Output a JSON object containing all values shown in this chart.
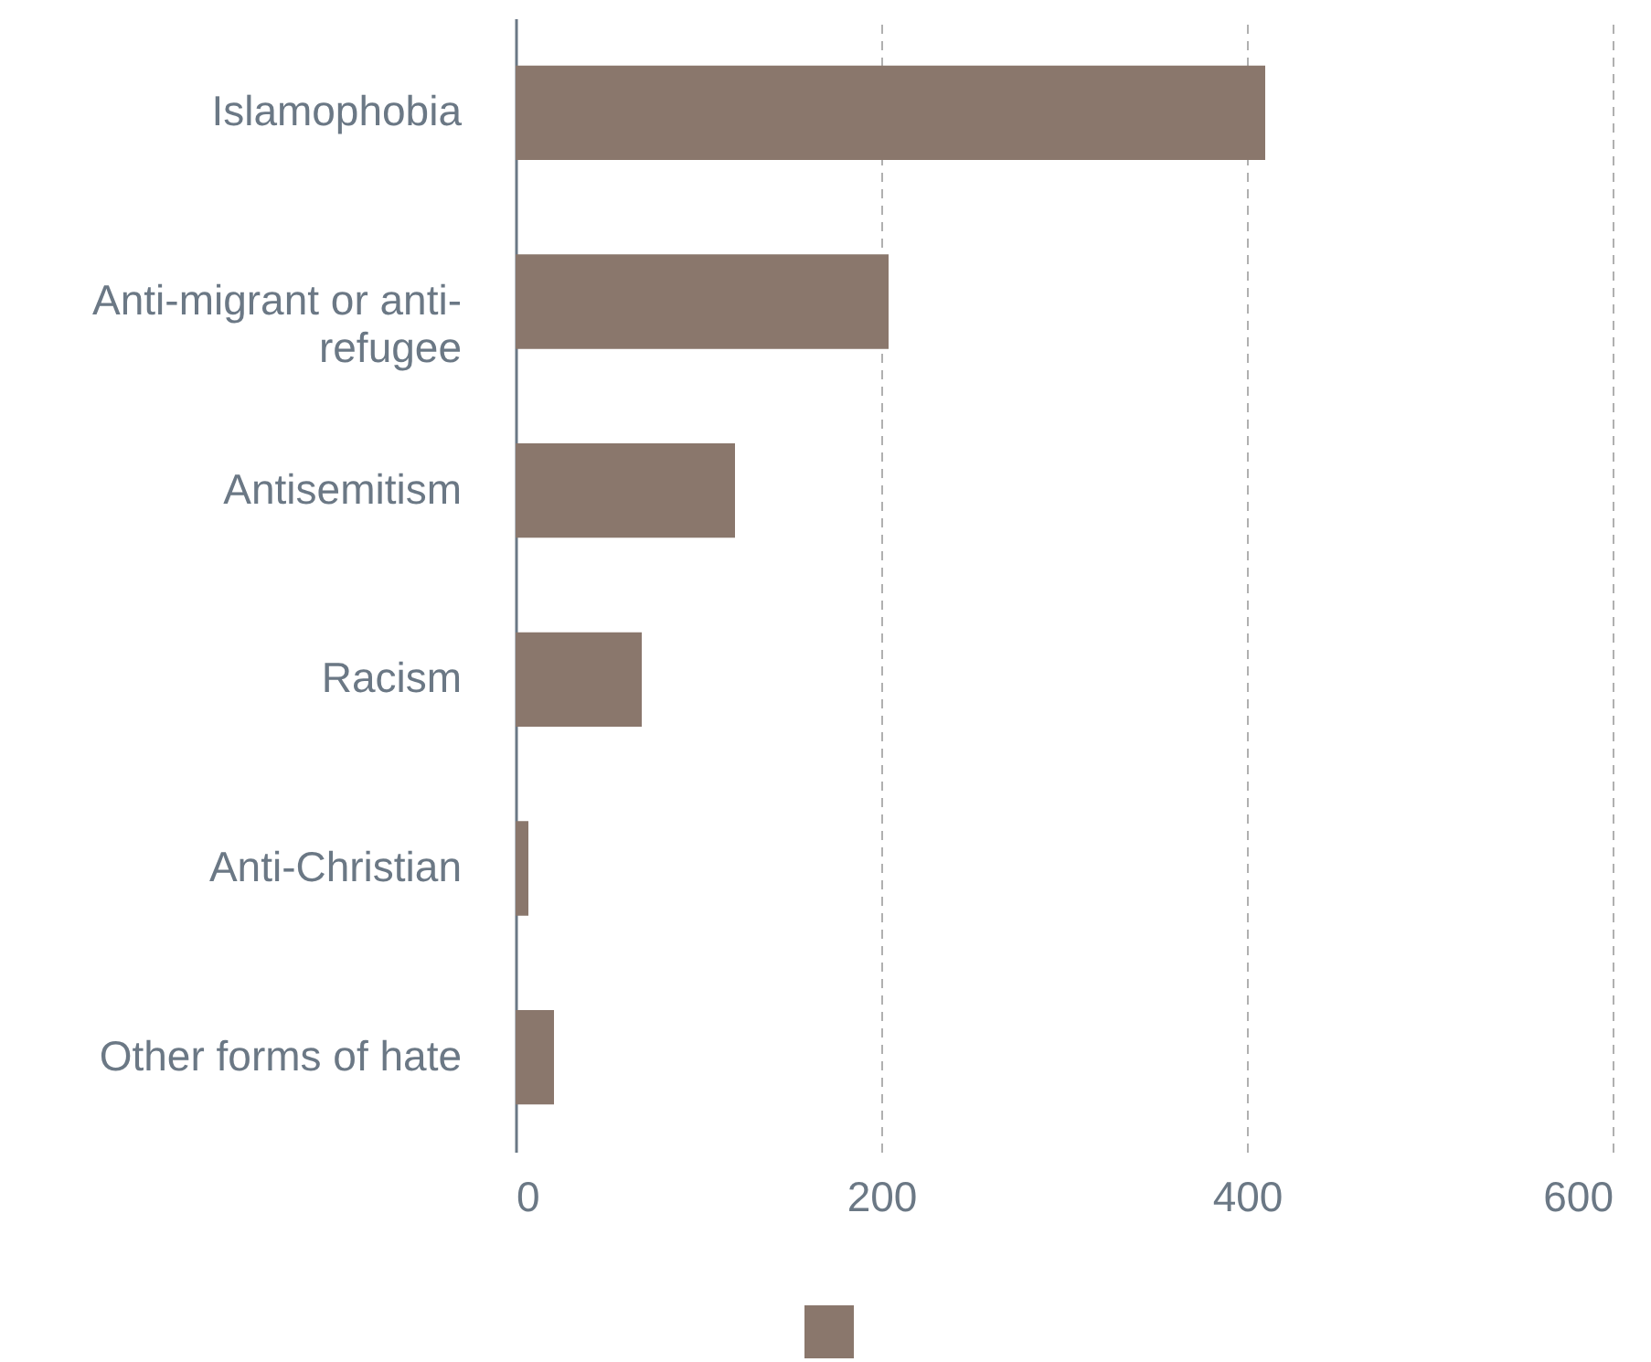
{
  "chart_data": {
    "type": "bar",
    "orientation": "horizontal",
    "categories": [
      "Islamophobia",
      "Anti-migrant or anti-refugee",
      "Antisemitism",
      "Racism",
      "Anti-Christian",
      "Other forms of hate"
    ],
    "series": [
      {
        "color": "#8a776c",
        "values": [
          410,
          204,
          120,
          69,
          7,
          21
        ]
      }
    ],
    "xlim": [
      0,
      600
    ],
    "xticks": [
      0,
      200,
      400,
      600
    ],
    "grid": "x"
  }
}
